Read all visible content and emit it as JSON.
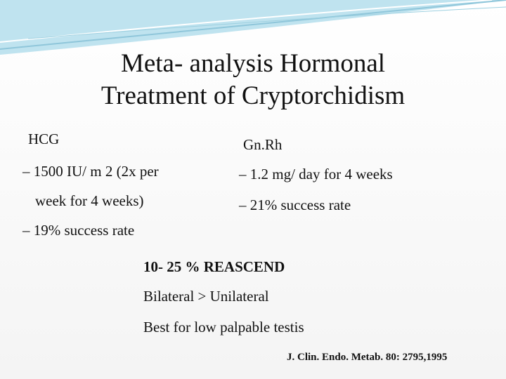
{
  "title": [
    "Meta- analysis Hormonal",
    "Treatment of Cryptorchidism"
  ],
  "left": {
    "heading": "HCG",
    "items": [
      "– 1500 IU/ m 2 (2x per",
      "week for 4 weeks)",
      "– 19% success rate"
    ]
  },
  "right": {
    "heading": "Gn.Rh",
    "items": [
      "– 1.2 mg/ day for 4 weeks",
      "– 21% success rate"
    ]
  },
  "notes": [
    "10- 25 % REASCEND",
    "Bilateral > Unilateral",
    "Best for low palpable testis"
  ],
  "citation": "J. Clin. Endo. Metab. 80: 2795,1995"
}
